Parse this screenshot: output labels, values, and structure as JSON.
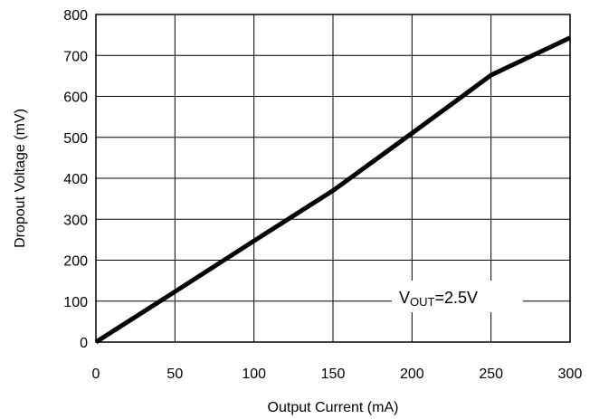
{
  "chart_data": {
    "type": "line",
    "title": "",
    "xlabel": "Output Current (mA)",
    "ylabel": "Dropout Voltage (mV)",
    "xlim": [
      0,
      300
    ],
    "ylim": [
      0,
      800
    ],
    "x_ticks": [
      "0",
      "50",
      "100",
      "150",
      "200",
      "250",
      "300"
    ],
    "y_ticks": [
      "0",
      "100",
      "200",
      "300",
      "400",
      "500",
      "600",
      "700",
      "800"
    ],
    "grid": true,
    "legend": "none",
    "annotation": {
      "main": "V",
      "subscript": "OUT",
      "suffix": "=2.5V"
    },
    "series": [
      {
        "color": "#000000",
        "x": [
          0,
          50,
          100,
          150,
          200,
          230,
          250,
          260,
          300
        ],
        "y": [
          0,
          123,
          247,
          370,
          510,
          595,
          652,
          670,
          743
        ]
      }
    ]
  }
}
